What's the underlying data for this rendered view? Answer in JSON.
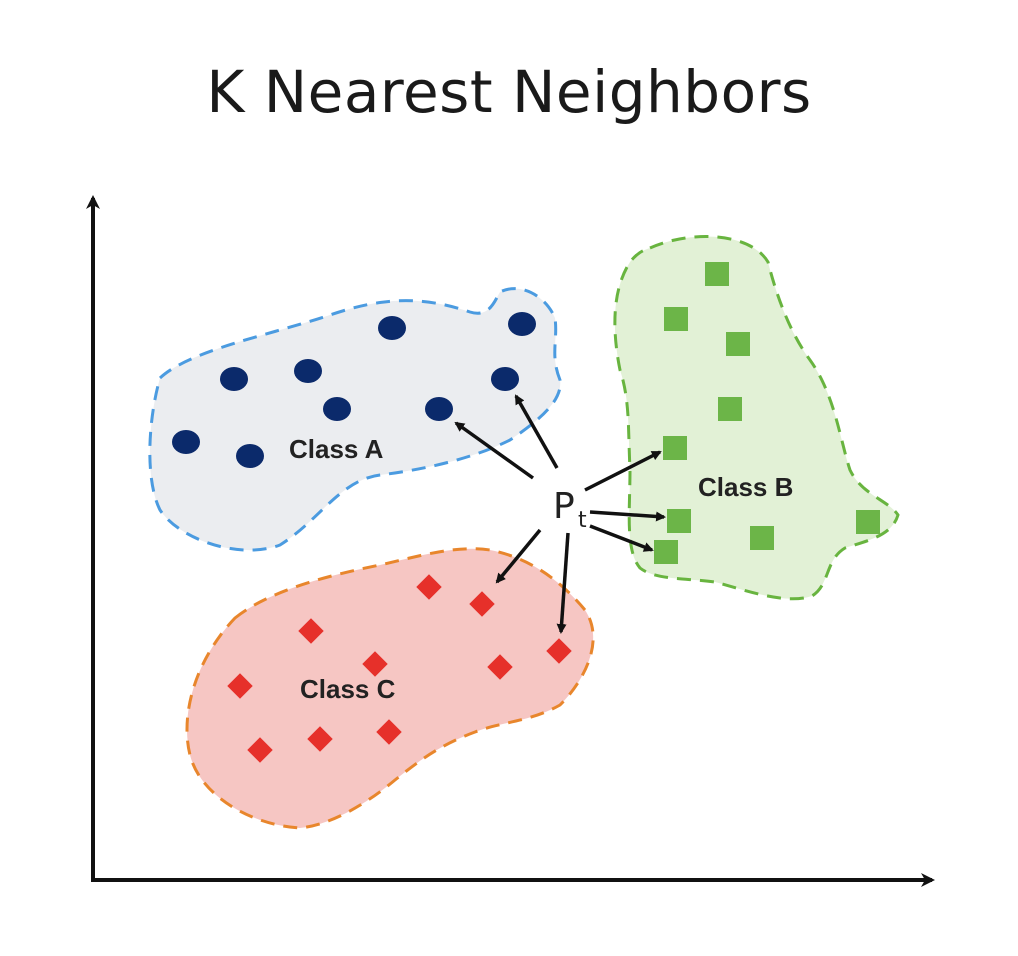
{
  "title": "K Nearest Neighbors",
  "classes": {
    "a": {
      "label": "Class A",
      "fill": "#ebedf0",
      "border": "#4b9be0",
      "point_color": "#0b2a6b"
    },
    "b": {
      "label": "Class B",
      "fill": "#e2f1d6",
      "border": "#68b43f",
      "point_color": "#6cb548"
    },
    "c": {
      "label": "Class C",
      "fill": "#f6c6c3",
      "border": "#e8862c",
      "point_color": "#e6302a"
    }
  },
  "query_point": {
    "label": "P",
    "subscript": "t"
  },
  "colors": {
    "axis": "#111111",
    "arrow": "#111111"
  }
}
